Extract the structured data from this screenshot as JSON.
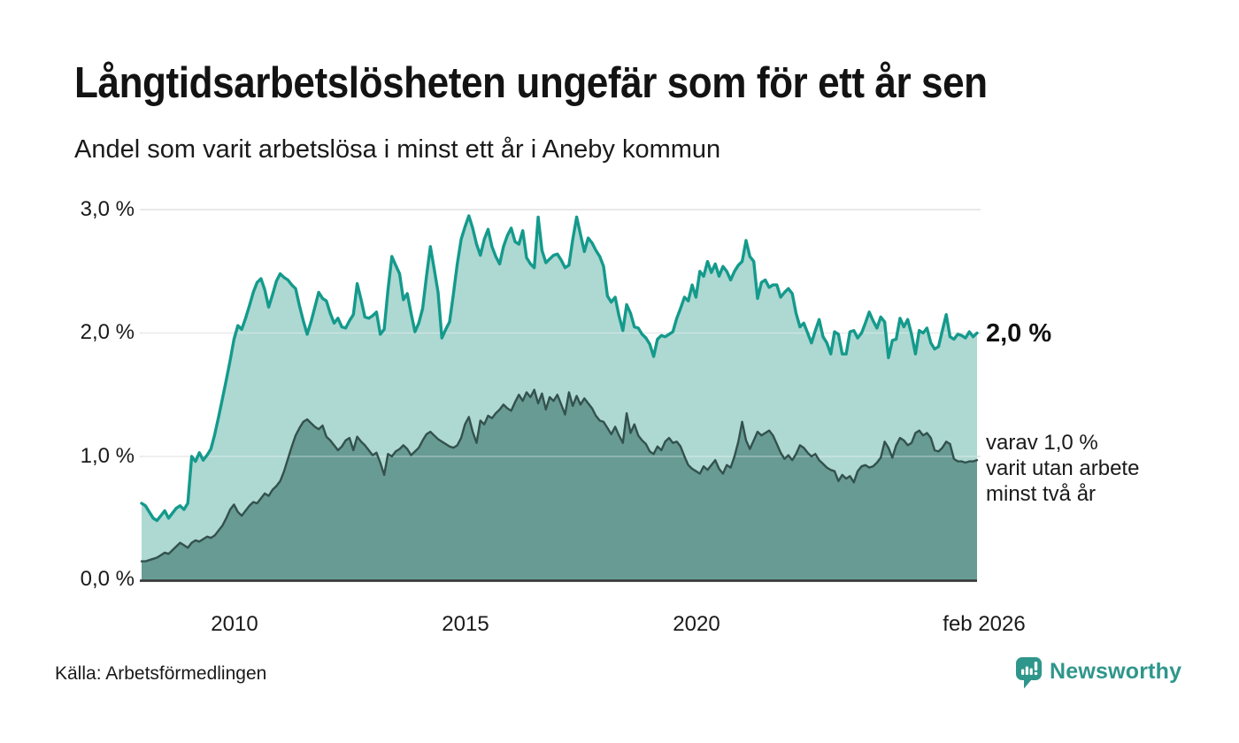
{
  "header": {
    "title": "Långtidsarbetslösheten ungefär som för ett år sen",
    "subtitle": "Andel som varit arbetslösa i minst ett år i Aneby kommun"
  },
  "chart_data": {
    "type": "area",
    "title": "Långtidsarbetslösheten ungefär som för ett år sen",
    "subtitle": "Andel som varit arbetslösa i minst ett år i Aneby kommun",
    "unit": "%",
    "x_range": [
      "2008-01",
      "2026-02"
    ],
    "x_interval": "monthly",
    "ylim": [
      0,
      3
    ],
    "grid": "horizontal",
    "y_tick_labels": [
      "3,0 %",
      "2,0 %",
      "1,0 %",
      "0,0 %"
    ],
    "y_tick_values": [
      3.0,
      2.0,
      1.0,
      0.0
    ],
    "x_tick_labels": [
      "2010",
      "2015",
      "2020",
      "feb 2026"
    ],
    "x_tick_values": [
      2010.0,
      2015.0,
      2020.0,
      2026.08
    ],
    "series": [
      {
        "name": "Andel som varit arbetslösa i minst ett år",
        "color": "#149a8c",
        "fill": "#aed8d2",
        "end_label": "2,0 %",
        "last_value": 2.0,
        "values": [
          0.62,
          0.6,
          0.55,
          0.5,
          0.48,
          0.52,
          0.56,
          0.5,
          0.54,
          0.58,
          0.6,
          0.57,
          0.62,
          1.0,
          0.96,
          1.03,
          0.97,
          1.01,
          1.06,
          1.18,
          1.32,
          1.47,
          1.62,
          1.78,
          1.95,
          2.06,
          2.03,
          2.12,
          2.22,
          2.33,
          2.41,
          2.44,
          2.35,
          2.21,
          2.31,
          2.42,
          2.48,
          2.45,
          2.43,
          2.39,
          2.36,
          2.22,
          2.1,
          1.99,
          2.09,
          2.21,
          2.33,
          2.28,
          2.26,
          2.16,
          2.08,
          2.12,
          2.05,
          2.04,
          2.1,
          2.15,
          2.4,
          2.27,
          2.13,
          2.12,
          2.14,
          2.17,
          1.99,
          2.03,
          2.35,
          2.62,
          2.55,
          2.48,
          2.27,
          2.32,
          2.16,
          2.01,
          2.08,
          2.2,
          2.46,
          2.7,
          2.52,
          2.33,
          1.96,
          2.03,
          2.09,
          2.32,
          2.56,
          2.76,
          2.86,
          2.95,
          2.85,
          2.72,
          2.63,
          2.76,
          2.84,
          2.7,
          2.62,
          2.56,
          2.7,
          2.79,
          2.85,
          2.74,
          2.72,
          2.83,
          2.61,
          2.56,
          2.53,
          2.94,
          2.67,
          2.57,
          2.6,
          2.63,
          2.64,
          2.59,
          2.53,
          2.55,
          2.76,
          2.94,
          2.8,
          2.66,
          2.77,
          2.73,
          2.67,
          2.62,
          2.54,
          2.3,
          2.25,
          2.29,
          2.14,
          2.02,
          2.23,
          2.16,
          2.05,
          2.04,
          1.99,
          1.96,
          1.91,
          1.81,
          1.95,
          1.98,
          1.97,
          1.99,
          2.01,
          2.12,
          2.2,
          2.29,
          2.26,
          2.39,
          2.29,
          2.5,
          2.46,
          2.58,
          2.49,
          2.56,
          2.46,
          2.54,
          2.5,
          2.43,
          2.5,
          2.55,
          2.58,
          2.75,
          2.62,
          2.58,
          2.28,
          2.41,
          2.43,
          2.37,
          2.39,
          2.39,
          2.29,
          2.33,
          2.36,
          2.32,
          2.16,
          2.05,
          2.08,
          2.0,
          1.92,
          2.02,
          2.11,
          1.97,
          1.92,
          1.83,
          2.01,
          1.99,
          1.83,
          1.83,
          2.01,
          2.02,
          1.96,
          2.0,
          2.08,
          2.17,
          2.1,
          2.04,
          2.13,
          2.09,
          1.8,
          1.94,
          1.95,
          2.12,
          2.05,
          2.11,
          1.99,
          1.83,
          2.02,
          2.0,
          2.04,
          1.92,
          1.87,
          1.89,
          2.02,
          2.15,
          1.97,
          1.95,
          1.99,
          1.98,
          1.96,
          2.01,
          1.97,
          2.0
        ]
      },
      {
        "name": "varav utan arbete minst två år",
        "color": "#33514d",
        "fill": "#679b94",
        "end_label_lines": [
          "varav 1,0 %",
          "varit utan arbete",
          "minst två år"
        ],
        "last_value": 1.0,
        "values": [
          0.15,
          0.15,
          0.16,
          0.17,
          0.18,
          0.2,
          0.22,
          0.21,
          0.24,
          0.27,
          0.3,
          0.28,
          0.26,
          0.3,
          0.32,
          0.31,
          0.33,
          0.35,
          0.34,
          0.36,
          0.4,
          0.44,
          0.5,
          0.57,
          0.61,
          0.55,
          0.52,
          0.56,
          0.6,
          0.63,
          0.62,
          0.66,
          0.7,
          0.68,
          0.73,
          0.76,
          0.8,
          0.88,
          0.98,
          1.08,
          1.17,
          1.23,
          1.28,
          1.3,
          1.27,
          1.24,
          1.22,
          1.25,
          1.16,
          1.13,
          1.09,
          1.05,
          1.08,
          1.13,
          1.15,
          1.05,
          1.16,
          1.12,
          1.09,
          1.05,
          1.01,
          1.03,
          0.95,
          0.85,
          1.02,
          1.0,
          1.04,
          1.06,
          1.09,
          1.06,
          1.01,
          1.04,
          1.07,
          1.13,
          1.18,
          1.2,
          1.17,
          1.14,
          1.12,
          1.1,
          1.08,
          1.07,
          1.09,
          1.15,
          1.26,
          1.32,
          1.2,
          1.11,
          1.29,
          1.26,
          1.33,
          1.31,
          1.35,
          1.38,
          1.42,
          1.39,
          1.37,
          1.44,
          1.5,
          1.45,
          1.52,
          1.48,
          1.54,
          1.43,
          1.51,
          1.38,
          1.48,
          1.45,
          1.5,
          1.42,
          1.34,
          1.52,
          1.41,
          1.49,
          1.42,
          1.47,
          1.43,
          1.39,
          1.33,
          1.29,
          1.28,
          1.23,
          1.18,
          1.24,
          1.17,
          1.11,
          1.35,
          1.19,
          1.26,
          1.17,
          1.13,
          1.1,
          1.04,
          1.02,
          1.08,
          1.05,
          1.12,
          1.15,
          1.11,
          1.12,
          1.08,
          1.0,
          0.93,
          0.9,
          0.88,
          0.86,
          0.92,
          0.89,
          0.93,
          0.97,
          0.9,
          0.86,
          0.93,
          0.91,
          1.0,
          1.12,
          1.28,
          1.13,
          1.06,
          1.13,
          1.2,
          1.17,
          1.19,
          1.21,
          1.17,
          1.1,
          1.03,
          0.98,
          1.01,
          0.97,
          1.02,
          1.09,
          1.07,
          1.03,
          1.0,
          1.02,
          0.97,
          0.94,
          0.91,
          0.89,
          0.88,
          0.8,
          0.85,
          0.82,
          0.84,
          0.79,
          0.88,
          0.92,
          0.93,
          0.91,
          0.92,
          0.95,
          0.99,
          1.12,
          1.07,
          0.99,
          1.09,
          1.15,
          1.13,
          1.09,
          1.11,
          1.19,
          1.21,
          1.17,
          1.19,
          1.15,
          1.05,
          1.04,
          1.07,
          1.12,
          1.1,
          0.98,
          0.96,
          0.96,
          0.95,
          0.96,
          0.96,
          0.97
        ]
      }
    ]
  },
  "footer": {
    "source": "Källa: Arbetsförmedlingen",
    "brand": "Newsworthy",
    "brand_color": "#2f968b"
  }
}
